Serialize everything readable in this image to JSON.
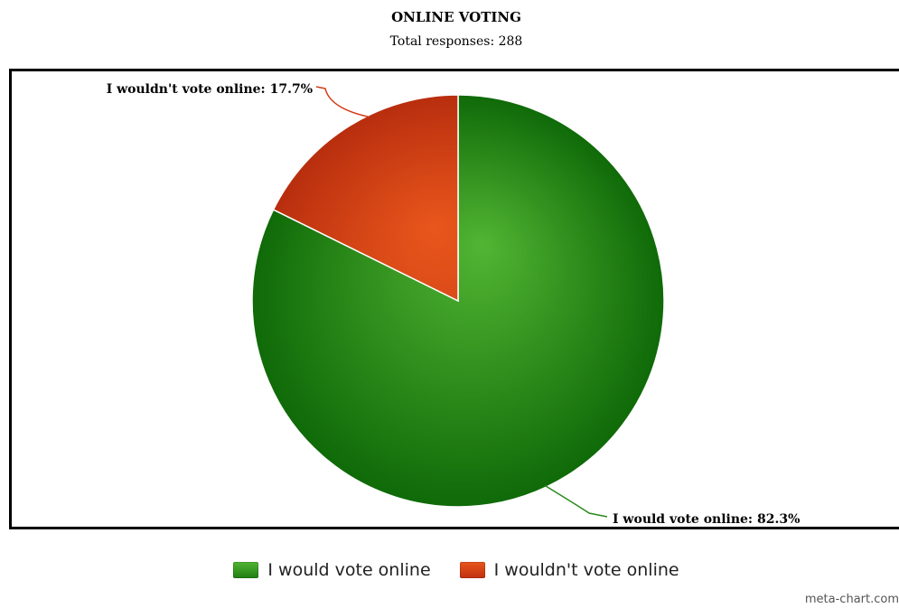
{
  "chart_data": {
    "type": "pie",
    "title": "ONLINE VOTING",
    "subtitle": "Total responses: 288",
    "slices": [
      {
        "label": "I would vote online",
        "value": 82.3,
        "display": "I would vote online: 82.3%",
        "color": "#2a8a1c",
        "light": "#52b533",
        "dark": "#0f6a08"
      },
      {
        "label": "I wouldn't vote online",
        "value": 17.7,
        "display": "I wouldn't vote online: 17.7%",
        "color": "#d13a13",
        "light": "#e9561c",
        "dark": "#b82e0e"
      }
    ],
    "legend_position": "bottom"
  },
  "watermark": "meta-chart.com"
}
